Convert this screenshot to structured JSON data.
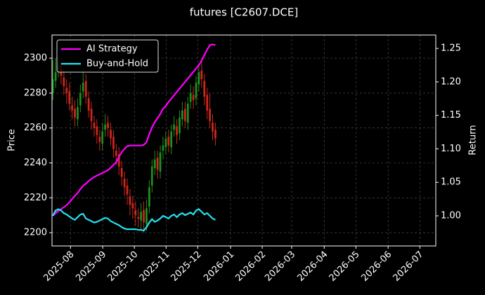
{
  "chart_data": {
    "type": "candlestick",
    "title": "futures [C2607.DCE]",
    "y_label": "Price",
    "y2_label": "Return",
    "candles": {
      "up_color": "#1f8f1f",
      "down_color": "#d0261c",
      "open": [
        2280,
        2287,
        2293,
        2297,
        2289,
        2283,
        2281,
        2273,
        2271,
        2265,
        2273,
        2281,
        2287,
        2277,
        2271,
        2263,
        2261,
        2255,
        2251,
        2259,
        2263,
        2259,
        2255,
        2247,
        2245,
        2237,
        2231,
        2227,
        2221,
        2217,
        2213,
        2209,
        2207,
        2213,
        2205,
        2215,
        2227,
        2237,
        2243,
        2235,
        2247,
        2249,
        2255,
        2249,
        2259,
        2261,
        2257,
        2265,
        2271,
        2263,
        2275,
        2279,
        2277,
        2285,
        2293,
        2287,
        2279,
        2271,
        2263,
        2259
      ],
      "high": [
        2299,
        2300,
        2301,
        2300,
        2294,
        2288,
        2286,
        2278,
        2276,
        2277,
        2285,
        2294,
        2291,
        2281,
        2275,
        2267,
        2265,
        2259,
        2263,
        2268,
        2267,
        2263,
        2259,
        2251,
        2249,
        2241,
        2235,
        2231,
        2225,
        2221,
        2218,
        2214,
        2217,
        2218,
        2219,
        2230,
        2242,
        2247,
        2247,
        2250,
        2255,
        2258,
        2259,
        2262,
        2267,
        2265,
        2270,
        2275,
        2275,
        2278,
        2285,
        2284,
        2290,
        2297,
        2298,
        2291,
        2283,
        2280,
        2268,
        2263
      ],
      "low": [
        2276,
        2283,
        2289,
        2285,
        2279,
        2274,
        2270,
        2265,
        2261,
        2261,
        2269,
        2277,
        2274,
        2266,
        2259,
        2255,
        2251,
        2247,
        2247,
        2255,
        2255,
        2250,
        2243,
        2239,
        2233,
        2227,
        2221,
        2216,
        2210,
        2208,
        2204,
        2203,
        2202,
        2200,
        2201,
        2211,
        2223,
        2233,
        2231,
        2231,
        2242,
        2245,
        2246,
        2245,
        2255,
        2251,
        2253,
        2261,
        2260,
        2259,
        2271,
        2271,
        2273,
        2281,
        2283,
        2273,
        2265,
        2260,
        2253,
        2250
      ],
      "close": [
        2288,
        2292,
        2296,
        2290,
        2284,
        2280,
        2274,
        2270,
        2266,
        2272,
        2280,
        2286,
        2278,
        2270,
        2264,
        2260,
        2256,
        2252,
        2258,
        2262,
        2260,
        2254,
        2248,
        2244,
        2238,
        2232,
        2226,
        2222,
        2216,
        2214,
        2210,
        2208,
        2212,
        2206,
        2214,
        2226,
        2238,
        2242,
        2236,
        2246,
        2250,
        2254,
        2250,
        2258,
        2262,
        2256,
        2266,
        2270,
        2264,
        2274,
        2280,
        2276,
        2286,
        2292,
        2288,
        2278,
        2270,
        2264,
        2258,
        2254
      ]
    },
    "series": [
      {
        "name": "AI Strategy",
        "color": "#ff00ff",
        "axis": "y2",
        "values": [
          1.0,
          1.004,
          1.007,
          1.01,
          1.013,
          1.016,
          1.02,
          1.025,
          1.03,
          1.034,
          1.04,
          1.045,
          1.048,
          1.052,
          1.055,
          1.058,
          1.06,
          1.062,
          1.064,
          1.066,
          1.068,
          1.072,
          1.076,
          1.08,
          1.088,
          1.095,
          1.1,
          1.104,
          1.105,
          1.105,
          1.105,
          1.105,
          1.105,
          1.106,
          1.11,
          1.122,
          1.132,
          1.14,
          1.146,
          1.152,
          1.16,
          1.164,
          1.17,
          1.175,
          1.18,
          1.185,
          1.19,
          1.195,
          1.2,
          1.205,
          1.21,
          1.215,
          1.22,
          1.225,
          1.232,
          1.24,
          1.248,
          1.255,
          1.256,
          1.255
        ]
      },
      {
        "name": "Buy-and-Hold",
        "color": "#22e3f0",
        "axis": "y2",
        "values": [
          1.0,
          1.008,
          1.01,
          1.008,
          1.004,
          1.002,
          0.999,
          0.996,
          0.994,
          0.998,
          1.002,
          1.003,
          0.996,
          0.994,
          0.992,
          0.99,
          0.991,
          0.993,
          0.995,
          0.997,
          0.996,
          0.992,
          0.99,
          0.988,
          0.986,
          0.983,
          0.981,
          0.98,
          0.98,
          0.98,
          0.98,
          0.979,
          0.979,
          0.978,
          0.983,
          0.99,
          0.995,
          0.991,
          0.993,
          0.996,
          1.0,
          0.998,
          0.996,
          1.0,
          1.002,
          0.998,
          1.002,
          1.004,
          1.001,
          1.003,
          1.005,
          1.002,
          1.008,
          1.01,
          1.006,
          1.002,
          1.004,
          1.0,
          0.996,
          0.994
        ]
      }
    ],
    "xlim": [
      -0.3,
      139
    ],
    "xticks": [
      {
        "value": 6.4,
        "label": "2025-08"
      },
      {
        "value": 18.1,
        "label": "2025-09"
      },
      {
        "value": 29.6,
        "label": "2025-10"
      },
      {
        "value": 41.1,
        "label": "2025-11"
      },
      {
        "value": 52.6,
        "label": "2025-12"
      },
      {
        "value": 64.5,
        "label": "2026-01"
      },
      {
        "value": 76.0,
        "label": "2026-02"
      },
      {
        "value": 86.7,
        "label": "2026-03"
      },
      {
        "value": 98.5,
        "label": "2026-04"
      },
      {
        "value": 110.0,
        "label": "2026-05"
      },
      {
        "value": 121.7,
        "label": "2026-06"
      },
      {
        "value": 133.2,
        "label": "2026-07"
      }
    ],
    "ylim": [
      2192.4,
      2313.3
    ],
    "yticks": [
      2200,
      2220,
      2240,
      2260,
      2280,
      2300
    ],
    "y2lim": [
      0.955,
      1.27
    ],
    "y2ticks": [
      {
        "value": 1,
        "label": "1.00"
      },
      1.05,
      {
        "value": 1.1,
        "label": "1.10"
      },
      1.15,
      {
        "value": 1.2,
        "label": "1.20"
      },
      1.25
    ],
    "grid": true,
    "legend": "upper left"
  }
}
